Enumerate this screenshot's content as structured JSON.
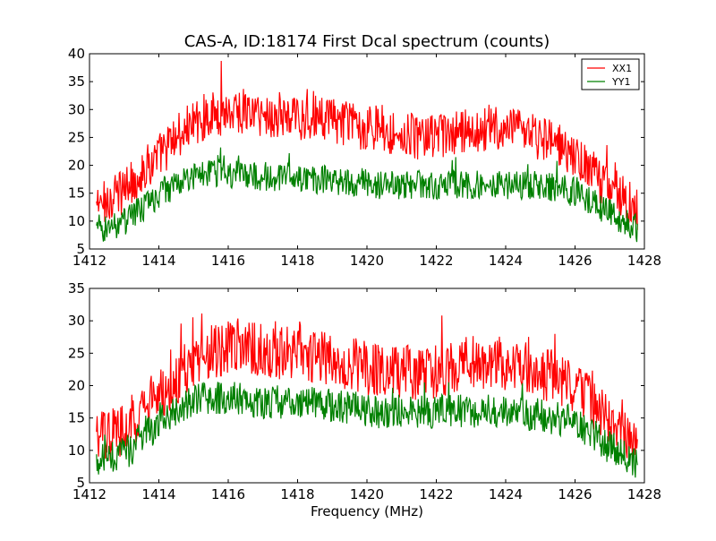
{
  "figure": {
    "title": "CAS-A, ID:18174 First Dcal spectrum (counts)"
  },
  "chart_data": [
    {
      "type": "line",
      "title": "CAS-A, ID:18174 First Dcal spectrum (counts)",
      "xlabel": "",
      "ylabel": "",
      "xlim": [
        1412,
        1428
      ],
      "ylim": [
        5,
        40
      ],
      "x_ticks": [
        "1412",
        "1414",
        "1416",
        "1418",
        "1420",
        "1422",
        "1424",
        "1426",
        "1428"
      ],
      "y_ticks": [
        "5",
        "10",
        "15",
        "20",
        "25",
        "30",
        "35",
        "40"
      ],
      "legend": {
        "location": "upper right",
        "entries": [
          "XX1",
          "YY1"
        ]
      },
      "grid": false,
      "series": [
        {
          "name": "XX1",
          "color": "#ff0000",
          "x": [
            1412.2,
            1412.6,
            1413.0,
            1413.4,
            1413.8,
            1414.2,
            1414.6,
            1415.0,
            1415.4,
            1415.8,
            1416.2,
            1416.6,
            1417.0,
            1417.4,
            1417.8,
            1418.2,
            1418.6,
            1419.0,
            1419.4,
            1419.8,
            1420.2,
            1420.6,
            1421.0,
            1421.4,
            1421.8,
            1422.2,
            1422.6,
            1423.0,
            1423.4,
            1423.8,
            1424.2,
            1424.6,
            1425.0,
            1425.4,
            1425.8,
            1426.2,
            1426.6,
            1427.0,
            1427.4,
            1427.8
          ],
          "values": [
            12.5,
            14.0,
            15.5,
            18.0,
            20.5,
            23.0,
            25.5,
            27.5,
            29.0,
            29.5,
            30.0,
            29.5,
            29.0,
            28.5,
            28.5,
            28.5,
            28.5,
            28.0,
            27.5,
            27.0,
            26.5,
            26.0,
            25.5,
            25.0,
            25.0,
            25.0,
            25.5,
            26.0,
            26.5,
            26.5,
            26.0,
            25.5,
            25.0,
            24.0,
            22.5,
            20.5,
            18.0,
            16.0,
            14.0,
            12.5
          ]
        },
        {
          "name": "YY1",
          "color": "#008000",
          "x": [
            1412.2,
            1412.6,
            1413.0,
            1413.4,
            1413.8,
            1414.2,
            1414.6,
            1415.0,
            1415.4,
            1415.8,
            1416.2,
            1416.6,
            1417.0,
            1417.4,
            1417.8,
            1418.2,
            1418.6,
            1419.0,
            1419.4,
            1419.8,
            1420.2,
            1420.6,
            1421.0,
            1421.4,
            1421.8,
            1422.2,
            1422.6,
            1423.0,
            1423.4,
            1423.8,
            1424.2,
            1424.6,
            1425.0,
            1425.4,
            1425.8,
            1426.2,
            1426.6,
            1427.0,
            1427.4,
            1427.8
          ],
          "values": [
            8.5,
            9.0,
            10.0,
            11.5,
            13.5,
            15.5,
            17.0,
            18.0,
            18.5,
            18.5,
            18.5,
            18.0,
            18.0,
            18.0,
            18.0,
            17.5,
            17.5,
            17.5,
            17.0,
            17.0,
            16.5,
            16.5,
            16.5,
            16.5,
            16.5,
            16.5,
            16.5,
            16.5,
            16.5,
            16.5,
            16.5,
            16.5,
            16.5,
            16.0,
            15.5,
            14.5,
            13.0,
            11.5,
            10.0,
            8.5
          ]
        }
      ]
    },
    {
      "type": "line",
      "title": "",
      "xlabel": "Frequency (MHz)",
      "ylabel": "",
      "xlim": [
        1412,
        1428
      ],
      "ylim": [
        5,
        35
      ],
      "x_ticks": [
        "1412",
        "1414",
        "1416",
        "1418",
        "1420",
        "1422",
        "1424",
        "1426",
        "1428"
      ],
      "y_ticks": [
        "5",
        "10",
        "15",
        "20",
        "25",
        "30",
        "35"
      ],
      "grid": false,
      "series": [
        {
          "color": "#ff0000",
          "x": [
            1412.2,
            1412.6,
            1413.0,
            1413.4,
            1413.8,
            1414.2,
            1414.6,
            1415.0,
            1415.4,
            1415.8,
            1416.2,
            1416.6,
            1417.0,
            1417.4,
            1417.8,
            1418.2,
            1418.6,
            1419.0,
            1419.4,
            1419.8,
            1420.2,
            1420.6,
            1421.0,
            1421.4,
            1421.8,
            1422.2,
            1422.6,
            1423.0,
            1423.4,
            1423.8,
            1424.2,
            1424.6,
            1425.0,
            1425.4,
            1425.8,
            1426.2,
            1426.6,
            1427.0,
            1427.4,
            1427.8
          ],
          "values": [
            11.5,
            12.5,
            13.5,
            15.5,
            17.5,
            19.5,
            21.5,
            23.5,
            25.0,
            25.5,
            26.0,
            26.0,
            25.5,
            25.0,
            25.0,
            25.0,
            24.5,
            24.0,
            23.5,
            23.0,
            22.5,
            22.5,
            22.0,
            22.0,
            22.0,
            22.5,
            23.0,
            23.5,
            23.5,
            23.5,
            23.0,
            22.5,
            22.0,
            21.5,
            20.0,
            18.5,
            16.5,
            14.5,
            12.5,
            11.0
          ]
        },
        {
          "color": "#008000",
          "x": [
            1412.2,
            1412.6,
            1413.0,
            1413.4,
            1413.8,
            1414.2,
            1414.6,
            1415.0,
            1415.4,
            1415.8,
            1416.2,
            1416.6,
            1417.0,
            1417.4,
            1417.8,
            1418.2,
            1418.6,
            1419.0,
            1419.4,
            1419.8,
            1420.2,
            1420.6,
            1421.0,
            1421.4,
            1421.8,
            1422.2,
            1422.6,
            1423.0,
            1423.4,
            1423.8,
            1424.2,
            1424.6,
            1425.0,
            1425.4,
            1425.8,
            1426.2,
            1426.6,
            1427.0,
            1427.4,
            1427.8
          ],
          "values": [
            8.5,
            9.0,
            9.5,
            11.0,
            13.0,
            15.0,
            16.5,
            17.5,
            18.0,
            18.0,
            18.0,
            17.5,
            17.5,
            17.5,
            17.5,
            17.5,
            17.0,
            17.0,
            16.5,
            16.5,
            16.0,
            16.0,
            16.0,
            16.0,
            16.0,
            16.0,
            16.0,
            16.0,
            16.0,
            16.0,
            16.0,
            15.5,
            15.5,
            15.0,
            14.5,
            13.5,
            12.0,
            10.5,
            9.5,
            8.0
          ]
        }
      ]
    }
  ]
}
